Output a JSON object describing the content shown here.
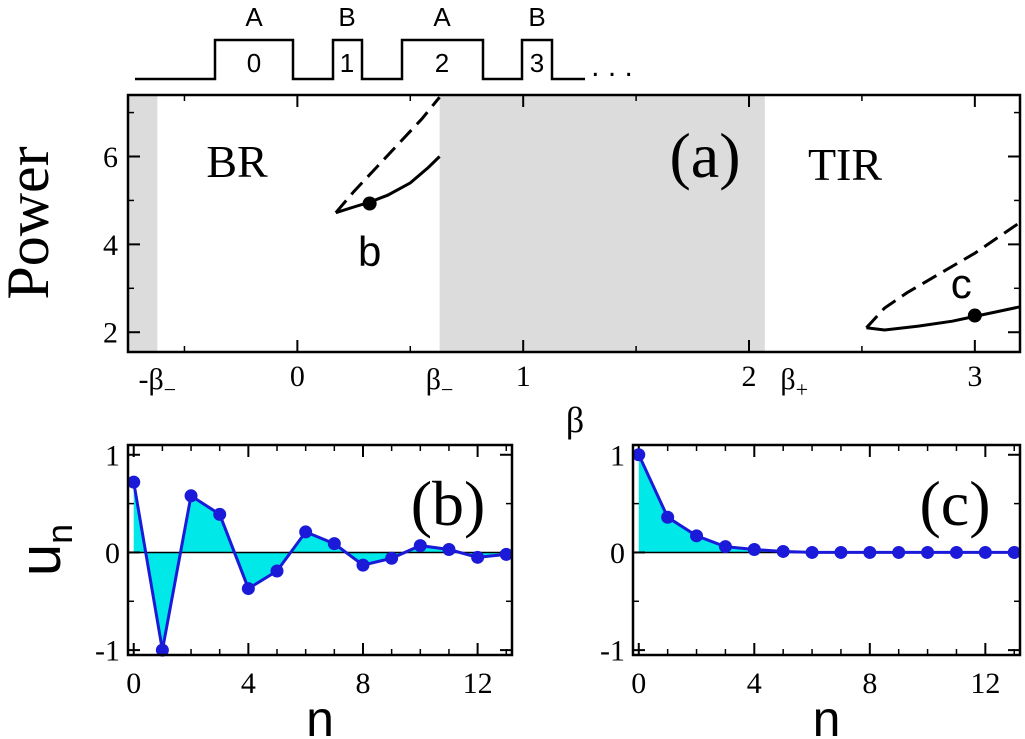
{
  "colors": {
    "shade": "#dcdcdc",
    "line": "#000000",
    "series": "#1a1ad8",
    "fill": "#00e8e8"
  },
  "lattice": {
    "letters": [
      "A",
      "B",
      "A",
      "B"
    ],
    "numbers": [
      "0",
      "1",
      "2",
      "3"
    ],
    "ellipsis": ". . ."
  },
  "chart_data": [
    {
      "panel": "a",
      "type": "line",
      "ylabel": "Power",
      "xlabel": "β",
      "panel_label": "(a)",
      "xlim": [
        -0.75,
        3.2
      ],
      "ylim": [
        1.55,
        7.4
      ],
      "yticks": [
        2,
        4,
        6
      ],
      "yticklabels": [
        "2",
        "4",
        "6"
      ],
      "xticks": [
        0,
        1,
        2,
        3
      ],
      "xticklabels": [
        "0",
        "1",
        "2",
        "3"
      ],
      "extra_xtick_labels": [
        {
          "x": -0.62,
          "base": "-β",
          "sub": "−"
        },
        {
          "x": 0.63,
          "base": "β",
          "sub": "−"
        },
        {
          "x": 2.2,
          "base": "β",
          "sub": "+"
        }
      ],
      "shaded_regions": [
        [
          -0.75,
          -0.62
        ],
        [
          0.63,
          2.07
        ]
      ],
      "region_labels": [
        "BR",
        "TIR"
      ],
      "series": [
        {
          "style": "dashed",
          "x": [
            0.17,
            0.25,
            0.35,
            0.45,
            0.55,
            0.63
          ],
          "y": [
            4.72,
            5.2,
            5.75,
            6.3,
            6.85,
            7.35
          ]
        },
        {
          "style": "solid",
          "x": [
            0.17,
            0.25,
            0.32,
            0.4,
            0.5,
            0.58,
            0.63
          ],
          "y": [
            4.72,
            4.85,
            4.96,
            5.12,
            5.4,
            5.75,
            6.0
          ]
        },
        {
          "style": "dashed",
          "x": [
            2.52,
            2.6,
            2.7,
            2.85,
            3.0,
            3.1,
            3.2
          ],
          "y": [
            2.1,
            2.55,
            2.9,
            3.35,
            3.8,
            4.15,
            4.5
          ]
        },
        {
          "style": "solid",
          "x": [
            2.52,
            2.6,
            2.75,
            2.9,
            3.0,
            3.1,
            3.2
          ],
          "y": [
            2.1,
            2.05,
            2.14,
            2.25,
            2.36,
            2.47,
            2.58
          ]
        }
      ],
      "points": [
        {
          "x": 0.32,
          "y": 4.93,
          "label": "b"
        },
        {
          "x": 3.0,
          "y": 2.38,
          "label": "c"
        }
      ]
    },
    {
      "panel": "b",
      "type": "area",
      "xlabel": "n",
      "ylabel_base": "u",
      "ylabel_sub": "n",
      "panel_label": "(b)",
      "xlim": [
        -0.2,
        13.2
      ],
      "ylim": [
        -1.05,
        1.1
      ],
      "xticks": [
        0,
        4,
        8,
        12
      ],
      "xticklabels": [
        "0",
        "4",
        "8",
        "12"
      ],
      "yticks": [
        -1,
        0,
        1
      ],
      "yticklabels": [
        "-1",
        "0",
        "1"
      ],
      "x": [
        0,
        1,
        2,
        3,
        4,
        5,
        6,
        7,
        8,
        9,
        10,
        11,
        12,
        13
      ],
      "values": [
        0.72,
        -1.0,
        0.58,
        0.39,
        -0.37,
        -0.19,
        0.21,
        0.09,
        -0.13,
        -0.06,
        0.07,
        0.03,
        -0.05,
        -0.02
      ]
    },
    {
      "panel": "c",
      "type": "area",
      "xlabel": "n",
      "panel_label": "(c)",
      "xlim": [
        -0.2,
        13.2
      ],
      "ylim": [
        -1.05,
        1.1
      ],
      "xticks": [
        0,
        4,
        8,
        12
      ],
      "xticklabels": [
        "0",
        "4",
        "8",
        "12"
      ],
      "yticks": [
        -1,
        0,
        1
      ],
      "yticklabels": [
        "-1",
        "0",
        "1"
      ],
      "x": [
        0,
        1,
        2,
        3,
        4,
        5,
        6,
        7,
        8,
        9,
        10,
        11,
        12,
        13
      ],
      "values": [
        1.0,
        0.36,
        0.17,
        0.06,
        0.03,
        0.01,
        0.0,
        0.0,
        0.0,
        0.0,
        0.0,
        0.0,
        0.0,
        0.0
      ]
    }
  ]
}
